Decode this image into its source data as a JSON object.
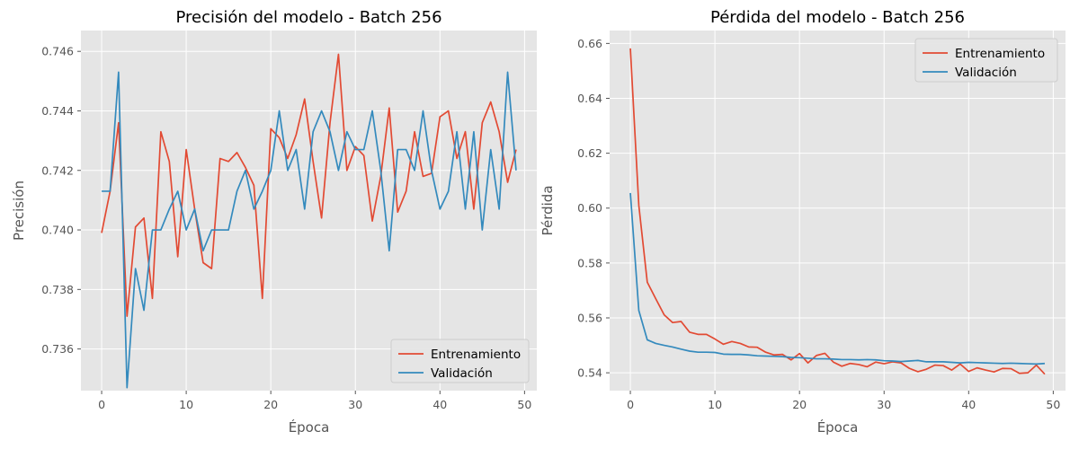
{
  "chart_data": [
    {
      "type": "line",
      "title": "Precisión del modelo - Batch 256",
      "xlabel": "Época",
      "ylabel": "Precisión",
      "xlim": [
        -2.45,
        51.45
      ],
      "ylim": [
        0.7346,
        0.7467
      ],
      "xticks": [
        0,
        10,
        20,
        30,
        40,
        50
      ],
      "yticks": [
        0.736,
        0.738,
        0.74,
        0.742,
        0.744,
        0.746
      ],
      "ytick_labels": [
        "0.736",
        "0.738",
        "0.740",
        "0.742",
        "0.744",
        "0.746"
      ],
      "grid": true,
      "legend_position": "lower-right",
      "x": [
        0,
        1,
        2,
        3,
        4,
        5,
        6,
        7,
        8,
        9,
        10,
        11,
        12,
        13,
        14,
        15,
        16,
        17,
        18,
        19,
        20,
        21,
        22,
        23,
        24,
        25,
        26,
        27,
        28,
        29,
        30,
        31,
        32,
        33,
        34,
        35,
        36,
        37,
        38,
        39,
        40,
        41,
        42,
        43,
        44,
        45,
        46,
        47,
        48,
        49
      ],
      "series": [
        {
          "name": "Entrenamiento",
          "color": "#E24A33",
          "values": [
            0.7399,
            0.7413,
            0.7436,
            0.7371,
            0.7401,
            0.7404,
            0.7377,
            0.7433,
            0.7423,
            0.7391,
            0.7427,
            0.7407,
            0.7389,
            0.7387,
            0.7424,
            0.7423,
            0.7426,
            0.7421,
            0.7415,
            0.7377,
            0.7434,
            0.7431,
            0.7424,
            0.7432,
            0.7444,
            0.7423,
            0.7404,
            0.7436,
            0.7459,
            0.742,
            0.7428,
            0.7425,
            0.7403,
            0.7418,
            0.7441,
            0.7406,
            0.7413,
            0.7433,
            0.7418,
            0.7419,
            0.7438,
            0.744,
            0.7424,
            0.7433,
            0.7407,
            0.7436,
            0.7443,
            0.7433,
            0.7416,
            0.7427
          ]
        },
        {
          "name": "Validación",
          "color": "#348ABD",
          "values": [
            0.7413,
            0.7413,
            0.7453,
            0.7347,
            0.7387,
            0.7373,
            0.74,
            0.74,
            0.7407,
            0.7413,
            0.74,
            0.7407,
            0.7393,
            0.74,
            0.74,
            0.74,
            0.7413,
            0.742,
            0.7407,
            0.7413,
            0.742,
            0.744,
            0.742,
            0.7427,
            0.7407,
            0.7433,
            0.744,
            0.7433,
            0.742,
            0.7433,
            0.7427,
            0.7427,
            0.744,
            0.742,
            0.7393,
            0.7427,
            0.7427,
            0.742,
            0.744,
            0.742,
            0.7407,
            0.7413,
            0.7433,
            0.7407,
            0.7433,
            0.74,
            0.7427,
            0.7407,
            0.7453,
            0.742
          ]
        }
      ]
    },
    {
      "type": "line",
      "title": "Pérdida del modelo - Batch 256",
      "xlabel": "Época",
      "ylabel": "Pérdida",
      "xlim": [
        -2.45,
        51.45
      ],
      "ylim": [
        0.5335,
        0.6647
      ],
      "xticks": [
        0,
        10,
        20,
        30,
        40,
        50
      ],
      "yticks": [
        0.54,
        0.56,
        0.58,
        0.6,
        0.62,
        0.64,
        0.66
      ],
      "ytick_labels": [
        "0.54",
        "0.56",
        "0.58",
        "0.60",
        "0.62",
        "0.64",
        "0.66"
      ],
      "grid": true,
      "legend_position": "upper-right",
      "x": [
        0,
        1,
        2,
        3,
        4,
        5,
        6,
        7,
        8,
        9,
        10,
        11,
        12,
        13,
        14,
        15,
        16,
        17,
        18,
        19,
        20,
        21,
        22,
        23,
        24,
        25,
        26,
        27,
        28,
        29,
        30,
        31,
        32,
        33,
        34,
        35,
        36,
        37,
        38,
        39,
        40,
        41,
        42,
        43,
        44,
        45,
        46,
        47,
        48,
        49
      ],
      "series": [
        {
          "name": "Entrenamiento",
          "color": "#E24A33",
          "values": [
            0.6582,
            0.601,
            0.573,
            0.567,
            0.5611,
            0.5583,
            0.5587,
            0.5548,
            0.554,
            0.554,
            0.5523,
            0.5504,
            0.5514,
            0.5507,
            0.5494,
            0.5493,
            0.5475,
            0.5465,
            0.5467,
            0.5447,
            0.547,
            0.5436,
            0.5463,
            0.5471,
            0.5439,
            0.5424,
            0.5434,
            0.543,
            0.5422,
            0.5439,
            0.5433,
            0.544,
            0.5436,
            0.5416,
            0.5404,
            0.5413,
            0.5428,
            0.5426,
            0.541,
            0.5432,
            0.5405,
            0.5418,
            0.541,
            0.5403,
            0.5416,
            0.5415,
            0.5398,
            0.54,
            0.5428,
            0.5395
          ]
        },
        {
          "name": "Validación",
          "color": "#348ABD",
          "values": [
            0.6055,
            0.5627,
            0.552,
            0.5507,
            0.55,
            0.5494,
            0.5486,
            0.5479,
            0.5475,
            0.5475,
            0.5474,
            0.5468,
            0.5467,
            0.5467,
            0.5465,
            0.5462,
            0.5461,
            0.546,
            0.5459,
            0.5456,
            0.5455,
            0.5453,
            0.5451,
            0.5451,
            0.545,
            0.5448,
            0.5448,
            0.5447,
            0.5448,
            0.5447,
            0.5444,
            0.5443,
            0.5441,
            0.5443,
            0.5445,
            0.544,
            0.544,
            0.544,
            0.5438,
            0.5436,
            0.5438,
            0.5437,
            0.5436,
            0.5435,
            0.5434,
            0.5435,
            0.5434,
            0.5433,
            0.5432,
            0.5434
          ]
        }
      ]
    }
  ]
}
